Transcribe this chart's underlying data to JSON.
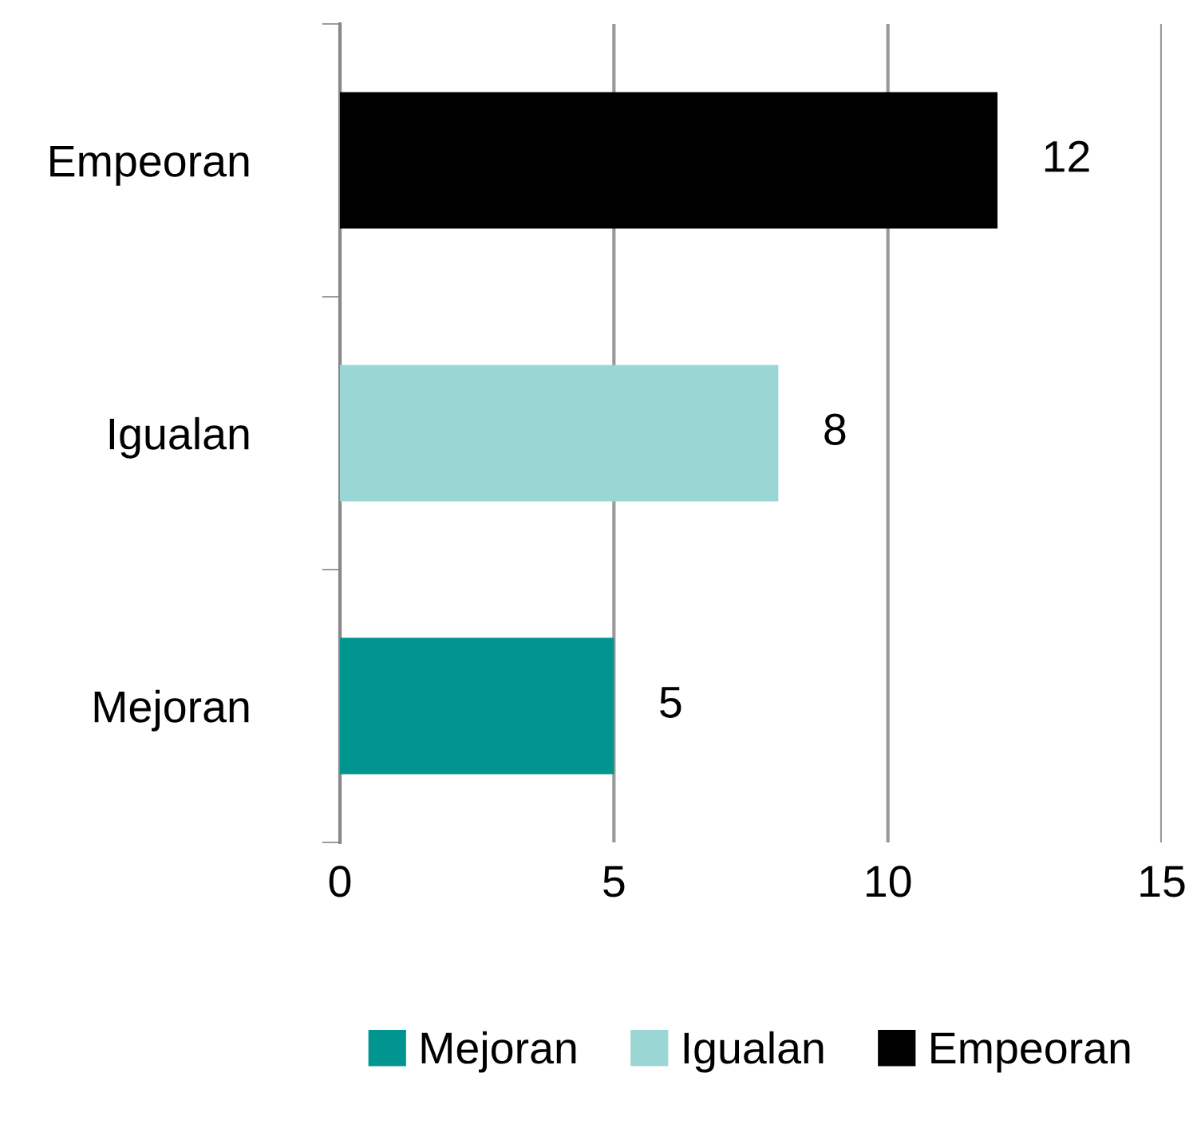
{
  "chart_data": {
    "type": "bar",
    "orientation": "horizontal",
    "categories": [
      "Empeoran",
      "Igualan",
      "Mejoran"
    ],
    "series": [
      {
        "name": "Mejoran",
        "color": "#00968f",
        "values": [
          null,
          null,
          5
        ]
      },
      {
        "name": "Igualan",
        "color": "#9ad6d4",
        "values": [
          null,
          8,
          null
        ]
      },
      {
        "name": "Empeoran",
        "color": "#000000",
        "values": [
          12,
          null,
          null
        ]
      }
    ],
    "xlim": [
      0,
      15
    ],
    "xticks": [
      0,
      5,
      10,
      15
    ],
    "grid": "x",
    "legend": "bottom",
    "data_labels": true
  }
}
